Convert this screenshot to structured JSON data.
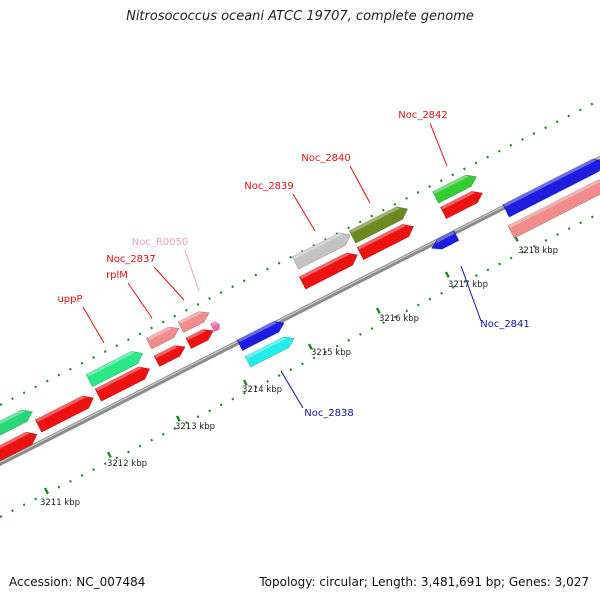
{
  "title": "Nitrosococcus oceani ATCC 19707, complete genome",
  "footer": {
    "accession": "Accession: NC_007484",
    "summary": "Topology: circular; Length: 3,481,691 bp; Genes: 3,027"
  },
  "colors": {
    "backbone": "#9a9a9a",
    "tick_green": "#1b8a1b",
    "label_red": "#dd1111",
    "label_blue": "#1111aa",
    "label_pink": "#f0a0b8"
  },
  "scale": {
    "ticks": [
      {
        "label": "3211 kbp"
      },
      {
        "label": "3212 kbp"
      },
      {
        "label": "3213 kbp"
      },
      {
        "label": "3214 kbp"
      },
      {
        "label": "3215 kbp"
      },
      {
        "label": "3216 kbp"
      },
      {
        "label": "3217 kbp"
      },
      {
        "label": "3218 kbp"
      }
    ]
  },
  "features": [
    {
      "name": "",
      "color": "#28d878"
    },
    {
      "name": "",
      "color": "#ee1111"
    },
    {
      "name": "uppP",
      "color": "#28e888"
    },
    {
      "name": "",
      "color": "#ee1111"
    },
    {
      "name": "",
      "color": "#ee1111"
    },
    {
      "name": "rplM",
      "color": "#f08c8c"
    },
    {
      "name": "Noc_2837",
      "color": "#ee1111"
    },
    {
      "name": "Noc_R0050",
      "color": "#f08c8c"
    },
    {
      "name": "",
      "color": "#ee1111"
    },
    {
      "name": "",
      "color": "#ff66aa"
    },
    {
      "name": "Noc_2838",
      "color": "#1d1de0"
    },
    {
      "name": "",
      "color": "#22ecec"
    },
    {
      "name": "Noc_2839",
      "color": "#c4c4c4"
    },
    {
      "name": "",
      "color": "#ee1111"
    },
    {
      "name": "Noc_2840",
      "color": "#6b8a22"
    },
    {
      "name": "",
      "color": "#ee1111"
    },
    {
      "name": "Noc_2841",
      "color": "#1d1de0"
    },
    {
      "name": "Noc_2842",
      "color": "#33cc33"
    },
    {
      "name": "",
      "color": "#ee1111"
    },
    {
      "name": "",
      "color": "#1d1de0"
    },
    {
      "name": "",
      "color": "#f08c8c"
    }
  ]
}
